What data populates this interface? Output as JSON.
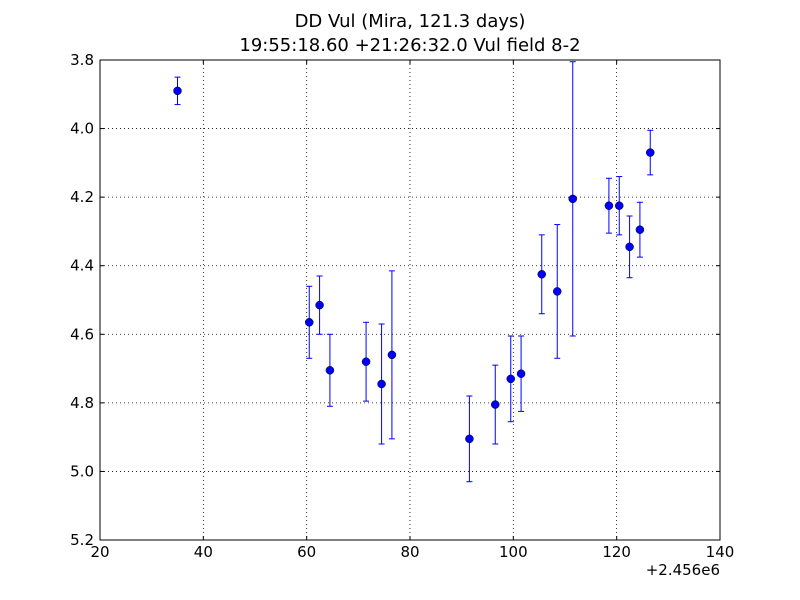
{
  "chart_data": {
    "type": "scatter",
    "title": "DD Vul (Mira, 121.3 days)",
    "subtitle": "19:55:18.60 +21:26:32.0 Vul field 8-2",
    "xlabel": "",
    "ylabel": "",
    "x_offset_label": "+2.456e6",
    "xlim": [
      20,
      140
    ],
    "ylim": [
      5.2,
      3.8
    ],
    "y_inverted": true,
    "x_ticks": [
      20,
      40,
      60,
      80,
      100,
      120,
      140
    ],
    "y_ticks": [
      3.8,
      4.0,
      4.2,
      4.4,
      4.6,
      4.8,
      5.0,
      5.2
    ],
    "x_tick_labels": [
      "20",
      "40",
      "60",
      "80",
      "100",
      "120",
      "140"
    ],
    "y_tick_labels": [
      "3.8",
      "4.0",
      "4.2",
      "4.4",
      "4.6",
      "4.8",
      "5.0",
      "5.2"
    ],
    "grid": true,
    "marker_color": "#0000ff",
    "points": [
      {
        "x": 35.0,
        "y": 3.89,
        "err": 0.04
      },
      {
        "x": 60.5,
        "y": 4.565,
        "err": 0.105
      },
      {
        "x": 62.5,
        "y": 4.515,
        "err": 0.085
      },
      {
        "x": 64.5,
        "y": 4.705,
        "err": 0.105
      },
      {
        "x": 71.5,
        "y": 4.68,
        "err": 0.115
      },
      {
        "x": 74.5,
        "y": 4.745,
        "err": 0.175
      },
      {
        "x": 76.5,
        "y": 4.66,
        "err": 0.245
      },
      {
        "x": 91.5,
        "y": 4.905,
        "err": 0.125
      },
      {
        "x": 96.5,
        "y": 4.805,
        "err": 0.115
      },
      {
        "x": 99.5,
        "y": 4.73,
        "err": 0.125
      },
      {
        "x": 101.5,
        "y": 4.715,
        "err": 0.11
      },
      {
        "x": 105.5,
        "y": 4.425,
        "err": 0.115
      },
      {
        "x": 108.5,
        "y": 4.475,
        "err": 0.195
      },
      {
        "x": 111.5,
        "y": 4.205,
        "err": 0.4
      },
      {
        "x": 118.5,
        "y": 4.225,
        "err": 0.08
      },
      {
        "x": 120.5,
        "y": 4.225,
        "err": 0.085
      },
      {
        "x": 122.5,
        "y": 4.345,
        "err": 0.09
      },
      {
        "x": 124.5,
        "y": 4.295,
        "err": 0.08
      },
      {
        "x": 126.5,
        "y": 4.07,
        "err": 0.065
      }
    ]
  }
}
